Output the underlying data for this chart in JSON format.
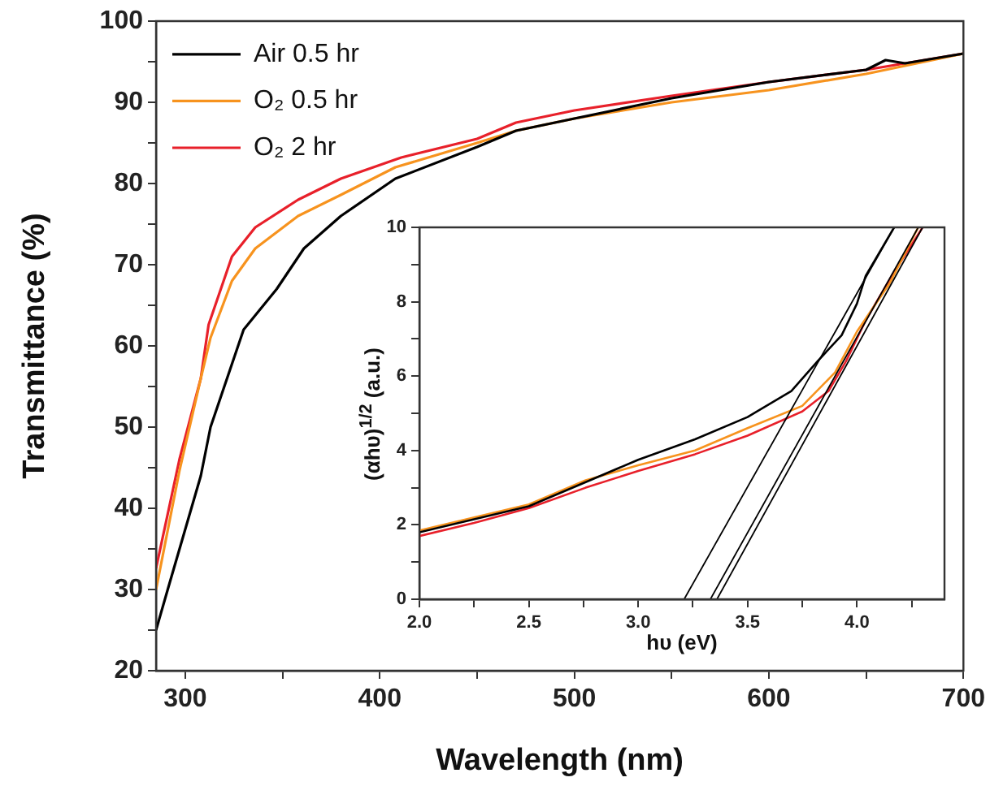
{
  "chart_data": [
    {
      "type": "line",
      "xlabel": "Wavelength (nm)",
      "ylabel": "Transmittance (%)",
      "xlim": [
        285,
        700
      ],
      "ylim": [
        20,
        100
      ],
      "xticks": [
        300,
        {
          "value": 350,
          "label": null
        },
        400,
        {
          "value": 450,
          "label": null
        },
        500,
        {
          "value": 550,
          "label": null
        },
        600,
        {
          "value": 650,
          "label": null
        },
        700
      ],
      "yticks": [
        20,
        {
          "value": 25,
          "label": null
        },
        30,
        {
          "value": 35,
          "label": null
        },
        40,
        {
          "value": 45,
          "label": null
        },
        50,
        {
          "value": 55,
          "label": null
        },
        60,
        {
          "value": 65,
          "label": null
        },
        70,
        {
          "value": 75,
          "label": null
        },
        80,
        {
          "value": 85,
          "label": null
        },
        90,
        {
          "value": 95,
          "label": null
        },
        100
      ],
      "grid": false,
      "legend": "top left",
      "marker": "none",
      "line_style": "solid",
      "series": [
        {
          "name": "Air 0.5 hr",
          "color": "#000000",
          "x": [
            285,
            291,
            308,
            313,
            330,
            347,
            361,
            380,
            408,
            450,
            470,
            500,
            550,
            600,
            650,
            660,
            670,
            700
          ],
          "values": [
            25,
            30,
            44,
            50,
            62,
            67,
            72,
            76,
            80.6,
            84.5,
            86.5,
            88,
            90.5,
            92.5,
            94,
            95.2,
            94.8,
            96
          ]
        },
        {
          "name": "O₂ 0.5 hr",
          "color": "#f7931e",
          "x": [
            285,
            297,
            308,
            313,
            324,
            336,
            358,
            380,
            408,
            450,
            470,
            500,
            550,
            600,
            650,
            700
          ],
          "values": [
            30,
            44.6,
            56,
            61,
            68,
            72,
            76,
            78.6,
            82,
            85,
            86.5,
            88,
            90,
            91.5,
            93.5,
            96
          ]
        },
        {
          "name": "O₂ 2 hr",
          "color": "#e8202a",
          "x": [
            285,
            297,
            308,
            312,
            324,
            336,
            358,
            380,
            411,
            450,
            470,
            500,
            550,
            600,
            650,
            700
          ],
          "values": [
            32.6,
            46,
            56,
            62.6,
            71,
            74.6,
            78,
            80.6,
            83.2,
            85.5,
            87.5,
            89,
            90.8,
            92.5,
            94,
            96
          ]
        }
      ]
    },
    {
      "type": "line",
      "xlabel": "hυ (eV)",
      "ylabel": "(αhυ)$^{1/2}$ (a.u.)",
      "xlim": [
        2.0,
        4.4
      ],
      "ylim": [
        0,
        10
      ],
      "xticks": [
        {
          "value": 2.0,
          "label": "2.0"
        },
        {
          "value": 2.25,
          "label": null
        },
        {
          "value": 2.5,
          "label": "2.5"
        },
        {
          "value": 2.75,
          "label": null
        },
        {
          "value": 3.0,
          "label": "3.0"
        },
        {
          "value": 3.25,
          "label": null
        },
        {
          "value": 3.5,
          "label": "3.5"
        },
        {
          "value": 3.75,
          "label": null
        },
        {
          "value": 4.0,
          "label": "4.0"
        },
        {
          "value": 4.25,
          "label": null
        }
      ],
      "yticks": [
        0,
        {
          "value": 1,
          "label": null
        },
        2,
        {
          "value": 3,
          "label": null
        },
        4,
        {
          "value": 5,
          "label": null
        },
        6,
        {
          "value": 7,
          "label": null
        },
        8,
        {
          "value": 9,
          "label": null
        },
        10
      ],
      "grid": false,
      "legend": false,
      "marker": "none",
      "line_style": "solid",
      "series": [
        {
          "color": "#000000",
          "x": [
            2.0,
            2.25,
            2.5,
            2.76,
            3.0,
            3.26,
            3.5,
            3.7,
            3.82,
            3.93,
            4.0,
            4.04,
            4.17
          ],
          "values": [
            1.8,
            2.15,
            2.5,
            3.15,
            3.75,
            4.3,
            4.9,
            5.6,
            6.4,
            7.1,
            7.95,
            8.7,
            10
          ]
        },
        {
          "color": "#f7931e",
          "x": [
            2.0,
            2.25,
            2.5,
            2.76,
            3.0,
            3.26,
            3.5,
            3.75,
            3.9,
            4.0,
            4.15,
            4.28
          ],
          "values": [
            1.85,
            2.2,
            2.55,
            3.2,
            3.6,
            4.0,
            4.6,
            5.2,
            6.1,
            7.2,
            8.5,
            10
          ]
        },
        {
          "color": "#e8202a",
          "x": [
            2.0,
            2.25,
            2.5,
            2.76,
            3.0,
            3.26,
            3.5,
            3.75,
            3.87,
            3.95,
            4.04,
            4.17,
            4.3
          ],
          "values": [
            1.7,
            2.05,
            2.45,
            3.0,
            3.45,
            3.9,
            4.4,
            5.05,
            5.6,
            6.4,
            7.5,
            8.8,
            10
          ]
        },
        {
          "type": "line",
          "color": "#000000",
          "x": [
            3.21,
            4.17
          ],
          "values": [
            0,
            10
          ]
        },
        {
          "type": "line",
          "color": "#000000",
          "x": [
            3.33,
            4.28
          ],
          "values": [
            0,
            10
          ]
        },
        {
          "type": "line",
          "color": "#000000",
          "x": [
            3.36,
            4.3
          ],
          "values": [
            0,
            10
          ]
        }
      ]
    }
  ]
}
